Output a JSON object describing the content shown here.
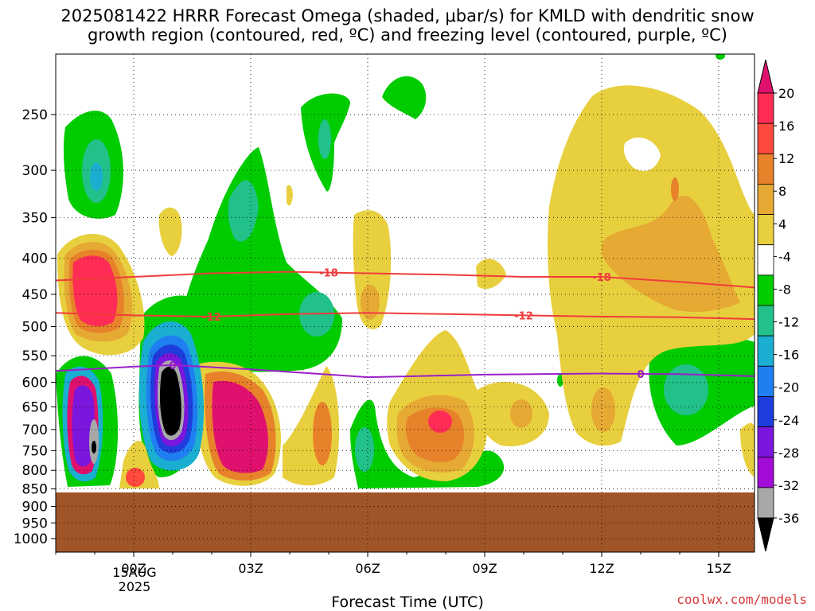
{
  "title": {
    "line1": "2025081422 HRRR Forecast Omega (shaded, μbar/s) for KMLD with dendritic snow",
    "line2": "growth region (contoured, red, ºC) and freezing level (contoured, purple, ºC)"
  },
  "credit": "coolwx.com/models",
  "chart_data": {
    "type": "heatmap",
    "title": "2025081422 HRRR Forecast Omega (shaded, μbar/s) for KMLD with dendritic snow growth region (contoured, red, ºC) and freezing level (contoured, purple, ºC)",
    "xlabel": "Forecast Time (UTC)",
    "ylabel": "",
    "x_ticks": [
      "00Z",
      "03Z",
      "06Z",
      "09Z",
      "12Z",
      "15Z"
    ],
    "x_date_label": [
      "15AUG",
      "2025"
    ],
    "y_ticks": [
      250,
      300,
      350,
      400,
      450,
      500,
      550,
      600,
      650,
      700,
      750,
      800,
      850,
      900,
      950,
      1000
    ],
    "y_scale": "log-pressure (inverted)",
    "grid": true,
    "colorbar": {
      "labels": [
        "20",
        "16",
        "12",
        "8",
        "4",
        "-4",
        "-8",
        "-12",
        "-16",
        "-20",
        "-24",
        "-28",
        "-32",
        "-36"
      ],
      "colors": [
        "#ff2d55",
        "#ff4a3d",
        "#e8822a",
        "#e6a934",
        "#e8cf3e",
        "#ffffff",
        "#00cc00",
        "#22c18a",
        "#1aaed0",
        "#1f7ff0",
        "#1f3cdc",
        "#7b16dc",
        "#a30bd6",
        "#a8a8a8",
        "#000000"
      ],
      "over_color": "#e0116e",
      "under_color": "#000000"
    },
    "contours": [
      {
        "name": "-18",
        "color": "#f03c3c",
        "x": [
          -2.4,
          0,
          2,
          4,
          6,
          8,
          10,
          12,
          14,
          16
        ],
        "y": [
          430,
          425,
          420,
          418,
          420,
          422,
          425,
          425,
          432,
          440
        ]
      },
      {
        "name": "-12",
        "color": "#f03c3c",
        "x": [
          -2.4,
          0,
          2,
          4,
          6,
          8,
          10,
          12,
          14,
          16
        ],
        "y": [
          478,
          482,
          484,
          480,
          478,
          480,
          482,
          484,
          485,
          488
        ]
      },
      {
        "name": "0",
        "color": "#9a20c8",
        "x": [
          -2.4,
          0,
          1,
          3,
          6,
          9,
          12,
          14,
          16
        ],
        "y": [
          578,
          570,
          567,
          575,
          590,
          585,
          583,
          584,
          588
        ]
      }
    ],
    "terrain": {
      "color": "#a05528",
      "pressure_top": 860
    }
  }
}
